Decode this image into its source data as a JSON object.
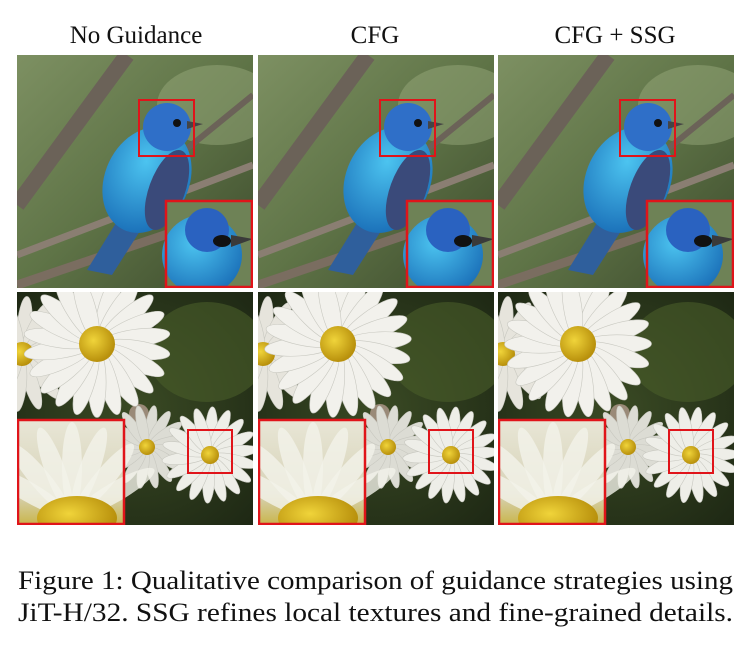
{
  "figure": {
    "columns": [
      "No Guidance",
      "CFG",
      "CFG + SSG"
    ],
    "caption": [
      "Figure 1: Qualitative comparison of guidance strategies using",
      "JiT-H/32. SSG refines local textures and fine-grained details."
    ]
  }
}
